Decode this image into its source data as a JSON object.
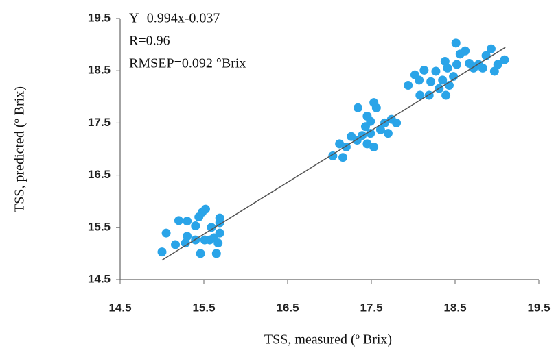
{
  "chart_data": {
    "type": "scatter",
    "x_label": "TSS, measured (º Brix)",
    "y_label": "TSS, predicted (º Brix)",
    "annotations": [
      "Y=0.994x-0.037",
      "R=0.96",
      "RMSEP=0.092 °Brix"
    ],
    "xlim": [
      14.5,
      19.5
    ],
    "ylim": [
      14.5,
      19.5
    ],
    "xticks": [
      14.5,
      15.5,
      16.5,
      17.5,
      18.5,
      19.5
    ],
    "yticks": [
      14.5,
      15.5,
      16.5,
      17.5,
      18.5,
      19.5
    ],
    "grid": false,
    "color": "#2aa4e8",
    "x": [
      15.0,
      15.05,
      15.2,
      15.3,
      15.3,
      15.4,
      15.16,
      15.28,
      15.4,
      15.51,
      15.48,
      15.52,
      15.44,
      15.57,
      15.62,
      15.67,
      15.69,
      15.69,
      15.69,
      15.46,
      15.65,
      15.59,
      17.04,
      17.12,
      17.16,
      17.2,
      17.26,
      17.33,
      17.39,
      17.43,
      17.45,
      17.49,
      17.53,
      17.56,
      17.45,
      17.34,
      17.53,
      17.49,
      17.66,
      17.7,
      17.74,
      17.8,
      17.61,
      17.94,
      18.02,
      18.08,
      18.13,
      18.19,
      18.21,
      18.27,
      18.31,
      18.35,
      18.39,
      18.41,
      18.43,
      18.48,
      18.51,
      18.52,
      18.56,
      18.62,
      18.67,
      18.72,
      18.78,
      18.83,
      18.87,
      18.93,
      18.97,
      19.01,
      19.09,
      18.07,
      18.38
    ],
    "y": [
      15.03,
      15.39,
      15.63,
      15.62,
      15.33,
      15.53,
      15.17,
      15.2,
      15.26,
      15.26,
      15.79,
      15.85,
      15.7,
      15.26,
      15.3,
      15.2,
      15.39,
      15.59,
      15.68,
      15.0,
      15.0,
      15.5,
      16.87,
      17.1,
      16.84,
      17.04,
      17.24,
      17.17,
      17.26,
      17.43,
      17.1,
      17.3,
      17.04,
      17.79,
      17.63,
      17.79,
      17.89,
      17.53,
      17.5,
      17.3,
      17.57,
      17.5,
      17.37,
      18.22,
      18.42,
      18.03,
      18.51,
      18.03,
      18.29,
      18.49,
      18.16,
      18.32,
      18.03,
      18.55,
      18.22,
      18.39,
      19.03,
      18.62,
      18.82,
      18.88,
      18.64,
      18.55,
      18.62,
      18.55,
      18.79,
      18.92,
      18.49,
      18.62,
      18.71,
      18.32,
      18.68
    ],
    "fit": {
      "x": [
        15.0,
        19.1
      ],
      "y": [
        14.873,
        18.948
      ],
      "color": "#555555"
    }
  }
}
